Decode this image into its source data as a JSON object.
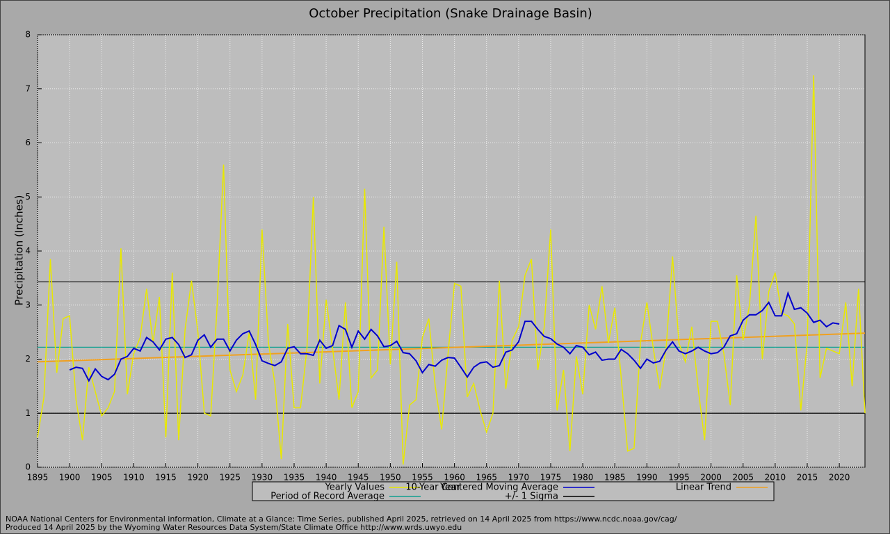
{
  "chart_data": {
    "type": "line",
    "title": "October Precipitation (Snake Drainage Basin)",
    "x_label": "Year",
    "y_label": "Precipitation (Inches)",
    "x": [
      1895,
      1896,
      1897,
      1898,
      1899,
      1900,
      1901,
      1902,
      1903,
      1904,
      1905,
      1906,
      1907,
      1908,
      1909,
      1910,
      1911,
      1912,
      1913,
      1914,
      1915,
      1916,
      1917,
      1918,
      1919,
      1920,
      1921,
      1922,
      1923,
      1924,
      1925,
      1926,
      1927,
      1928,
      1929,
      1930,
      1931,
      1932,
      1933,
      1934,
      1935,
      1936,
      1937,
      1938,
      1939,
      1940,
      1941,
      1942,
      1943,
      1944,
      1945,
      1946,
      1947,
      1948,
      1949,
      1950,
      1951,
      1952,
      1953,
      1954,
      1955,
      1956,
      1957,
      1958,
      1959,
      1960,
      1961,
      1962,
      1963,
      1964,
      1965,
      1966,
      1967,
      1968,
      1969,
      1970,
      1971,
      1972,
      1973,
      1974,
      1975,
      1976,
      1977,
      1978,
      1979,
      1980,
      1981,
      1982,
      1983,
      1984,
      1985,
      1986,
      1987,
      1988,
      1989,
      1990,
      1991,
      1992,
      1993,
      1994,
      1995,
      1996,
      1997,
      1998,
      1999,
      2000,
      2001,
      2002,
      2003,
      2004,
      2005,
      2006,
      2007,
      2008,
      2009,
      2010,
      2011,
      2012,
      2013,
      2014,
      2015,
      2016,
      2017,
      2018,
      2019,
      2020,
      2021,
      2022,
      2023,
      2024
    ],
    "series": [
      {
        "name": "Yearly Values",
        "color": "#e8e800",
        "values": [
          0.55,
          1.3,
          3.85,
          1.75,
          2.75,
          2.8,
          1.25,
          0.5,
          1.85,
          1.4,
          0.95,
          1.1,
          1.4,
          4.05,
          1.35,
          2.1,
          2.4,
          3.3,
          2.3,
          3.15,
          0.55,
          3.6,
          0.5,
          2.55,
          3.45,
          2.5,
          1.0,
          0.95,
          3.0,
          5.6,
          1.8,
          1.4,
          1.7,
          2.5,
          1.25,
          4.4,
          2.3,
          1.55,
          0.15,
          2.65,
          1.1,
          1.1,
          2.2,
          5.0,
          1.55,
          3.1,
          2.2,
          1.25,
          3.05,
          1.1,
          1.4,
          5.15,
          1.65,
          1.8,
          4.45,
          1.9,
          3.8,
          0.05,
          1.15,
          1.25,
          2.4,
          2.75,
          1.5,
          0.7,
          2.1,
          3.4,
          3.35,
          1.3,
          1.55,
          1.05,
          0.65,
          1.0,
          3.45,
          1.45,
          2.35,
          2.6,
          3.55,
          3.85,
          1.8,
          2.6,
          4.4,
          1.05,
          1.8,
          0.3,
          2.05,
          1.35,
          3.0,
          2.55,
          3.35,
          2.3,
          2.95,
          1.65,
          0.3,
          0.35,
          2.3,
          3.05,
          2.2,
          1.45,
          2.2,
          3.9,
          2.3,
          1.95,
          2.6,
          1.45,
          0.5,
          2.7,
          2.7,
          2.1,
          1.15,
          3.55,
          2.35,
          3.0,
          4.65,
          2.0,
          3.25,
          3.6,
          2.85,
          2.8,
          2.65,
          1.05,
          2.3,
          7.25,
          1.65,
          2.2,
          2.15,
          2.1,
          3.05,
          1.5,
          3.3,
          1.0
        ]
      },
      {
        "name": "10-Year Centered Moving Average",
        "color": "#0000cc",
        "values": [
          null,
          null,
          null,
          null,
          null,
          1.8,
          1.85,
          1.83,
          1.6,
          1.82,
          1.68,
          1.62,
          1.72,
          2.0,
          2.05,
          2.2,
          2.15,
          2.4,
          2.32,
          2.17,
          2.37,
          2.4,
          2.27,
          2.03,
          2.08,
          2.35,
          2.45,
          2.22,
          2.37,
          2.37,
          2.15,
          2.35,
          2.47,
          2.52,
          2.27,
          1.97,
          1.92,
          1.88,
          1.95,
          2.2,
          2.23,
          2.1,
          2.1,
          2.07,
          2.35,
          2.2,
          2.25,
          2.62,
          2.55,
          2.22,
          2.52,
          2.37,
          2.55,
          2.43,
          2.23,
          2.25,
          2.33,
          2.12,
          2.1,
          1.97,
          1.75,
          1.9,
          1.87,
          1.98,
          2.03,
          2.02,
          1.85,
          1.67,
          1.85,
          1.93,
          1.95,
          1.85,
          1.88,
          2.13,
          2.17,
          2.32,
          2.7,
          2.7,
          2.55,
          2.42,
          2.38,
          2.28,
          2.22,
          2.1,
          2.25,
          2.22,
          2.08,
          2.13,
          1.98,
          2.0,
          2.0,
          2.18,
          2.1,
          1.98,
          1.83,
          2.0,
          1.93,
          1.96,
          2.17,
          2.32,
          2.15,
          2.1,
          2.15,
          2.22,
          2.15,
          2.1,
          2.12,
          2.22,
          2.43,
          2.47,
          2.72,
          2.82,
          2.82,
          2.9,
          3.05,
          2.8,
          2.8,
          3.22,
          2.92,
          2.95,
          2.85,
          2.68,
          2.72,
          2.6,
          2.67,
          2.65,
          null,
          null,
          null,
          null
        ]
      }
    ],
    "trend": {
      "name": "Linear Trend",
      "color": "#f0a020",
      "x": [
        1895,
        2024
      ],
      "values": [
        1.95,
        2.48
      ]
    },
    "hlines": [
      {
        "name": "Period of Record Average",
        "color": "#10a090",
        "values": [
          2.22
        ]
      },
      {
        "name": "+/- 1 Sigma",
        "color": "#000000",
        "values": [
          1.0,
          3.43
        ]
      }
    ],
    "xlim": [
      1895,
      2024
    ],
    "xticks": [
      1895,
      1900,
      1905,
      1910,
      1915,
      1920,
      1925,
      1930,
      1935,
      1940,
      1945,
      1950,
      1955,
      1960,
      1965,
      1970,
      1975,
      1980,
      1985,
      1990,
      1995,
      2000,
      2005,
      2010,
      2015,
      2020
    ],
    "ylim": [
      0,
      8
    ],
    "yticks": [
      0,
      1,
      2,
      3,
      4,
      5,
      6,
      7,
      8
    ],
    "grid": true,
    "footer": [
      "NOAA National Centers for Environmental information, Climate at a Glance: Time Series, published April 2025, retrieved on 14 April 2025 from https://www.ncdc.noaa.gov/cag/",
      "Produced 14 April 2025 by the Wyoming Water Resources Data System/State Climate Office http://www.wrds.uwyo.edu"
    ]
  }
}
